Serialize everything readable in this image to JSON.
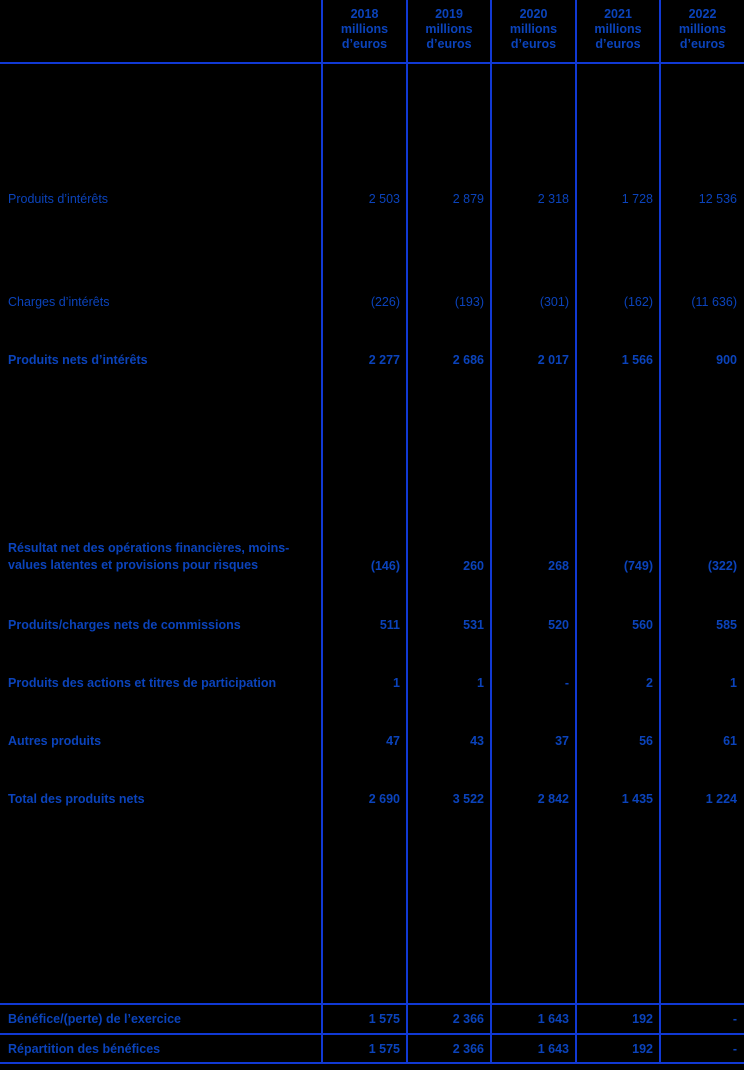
{
  "table": {
    "columns": [
      {
        "year": "2018",
        "unit": "millions\nd’euros"
      },
      {
        "year": "2019",
        "unit": "millions\nd’euros"
      },
      {
        "year": "2020",
        "unit": "millions\nd’euros"
      },
      {
        "year": "2021",
        "unit": "millions\nd’euros"
      },
      {
        "year": "2022",
        "unit": "millions\nd’euros"
      }
    ],
    "rows": [
      {
        "label": "Produits d’intérêts",
        "values": [
          "2 503",
          "2 879",
          "2 318",
          "1 728",
          "12 536"
        ]
      },
      {
        "label": "Charges d’intérêts",
        "values": [
          "(226)",
          "(193)",
          "(301)",
          "(162)",
          "(11 636)"
        ]
      },
      {
        "label": "Produits nets d’intérêts",
        "values": [
          "2 277",
          "2 686",
          "2 017",
          "1 566",
          "900"
        ]
      },
      {
        "label": "Résultat net des opérations financières, moins-values latentes et provisions pour risques",
        "values": [
          "(146)",
          "260",
          "268",
          "(749)",
          "(322)"
        ]
      },
      {
        "label": "Produits/charges nets de commissions",
        "values": [
          "511",
          "531",
          "520",
          "560",
          "585"
        ]
      },
      {
        "label": "Produits des actions et titres de participation",
        "values": [
          "1",
          "1",
          "-",
          "2",
          "1"
        ]
      },
      {
        "label": "Autres produits",
        "values": [
          "47",
          "43",
          "37",
          "56",
          "61"
        ]
      },
      {
        "label": "Total des produits nets",
        "values": [
          "2 690",
          "3 522",
          "2 842",
          "1 435",
          "1 224"
        ]
      },
      {
        "label": "Bénéfice/(perte) de l’exercice",
        "values": [
          "1 575",
          "2 366",
          "1 643",
          "192",
          "-"
        ]
      },
      {
        "label": "Répartition des bénéfices",
        "values": [
          "1 575",
          "2 366",
          "1 643",
          "192",
          "-"
        ]
      }
    ],
    "colors": {
      "background": "#000000",
      "text": "#0b43bb",
      "grid_line": "#1139d4"
    }
  }
}
